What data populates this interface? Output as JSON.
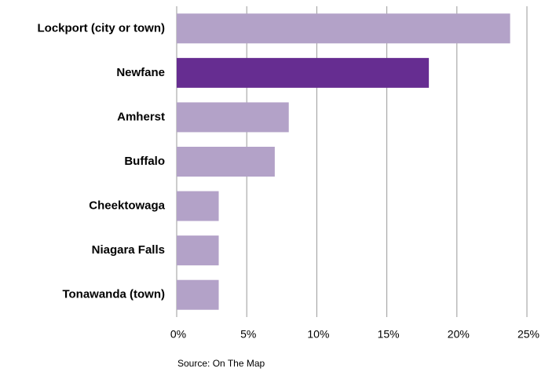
{
  "chart_data": {
    "type": "bar",
    "orientation": "horizontal",
    "categories": [
      "Lockport (city or town)",
      "Newfane",
      "Amherst",
      "Buffalo",
      "Cheektowaga",
      "Niagara Falls",
      "Tonawanda (town)"
    ],
    "values": [
      23.8,
      18.0,
      8.0,
      7.0,
      3.0,
      3.0,
      3.0
    ],
    "colors": [
      "#b3a2c8",
      "#662d91",
      "#b3a2c8",
      "#b3a2c8",
      "#b3a2c8",
      "#b3a2c8",
      "#b3a2c8"
    ],
    "xlim": [
      0,
      25
    ],
    "xticks": [
      {
        "value": 0,
        "label": "0%"
      },
      {
        "value": 5,
        "label": "5%"
      },
      {
        "value": 10,
        "label": "10%"
      },
      {
        "value": 15,
        "label": "15%"
      },
      {
        "value": 20,
        "label": "20%"
      },
      {
        "value": 25,
        "label": "25%"
      }
    ],
    "grid": true,
    "source": "Source: On The Map"
  }
}
